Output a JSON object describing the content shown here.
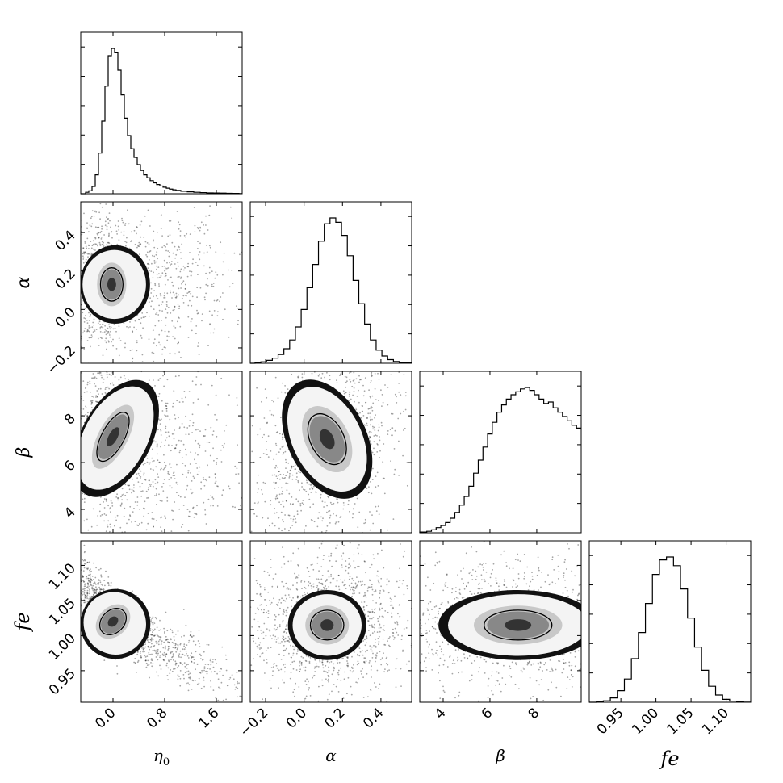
{
  "chart_data": {
    "type": "corner",
    "parameters": [
      {
        "key": "eta0",
        "label": "η",
        "sub": "0",
        "range": [
          -0.5,
          2.0
        ],
        "ticks": [
          0.0,
          0.8,
          1.6
        ],
        "tick_labels": [
          "0.0",
          "0.8",
          "1.6"
        ]
      },
      {
        "key": "alpha",
        "label": "α",
        "sub": "",
        "range": [
          -0.28,
          0.56
        ],
        "ticks": [
          -0.2,
          0.0,
          0.2,
          0.4
        ],
        "tick_labels": [
          "−0.2",
          "0.0",
          "0.2",
          "0.4"
        ]
      },
      {
        "key": "beta",
        "label": "β",
        "sub": "",
        "range": [
          3.0,
          9.9
        ],
        "ticks": [
          4,
          6,
          8
        ],
        "tick_labels": [
          "4",
          "6",
          "8"
        ]
      },
      {
        "key": "fe",
        "label": "fe",
        "sub": "",
        "range": [
          0.905,
          1.135
        ],
        "ticks": [
          0.95,
          1.0,
          1.05,
          1.1
        ],
        "tick_labels": [
          "0.95",
          "1.00",
          "1.05",
          "1.10"
        ]
      }
    ],
    "marginals": [
      {
        "param": "eta0",
        "bin_centers": [
          -0.45,
          -0.4,
          -0.35,
          -0.3,
          -0.25,
          -0.2,
          -0.15,
          -0.1,
          -0.05,
          0.0,
          0.05,
          0.1,
          0.15,
          0.2,
          0.25,
          0.3,
          0.35,
          0.4,
          0.45,
          0.5,
          0.55,
          0.6,
          0.65,
          0.7,
          0.75,
          0.8,
          0.85,
          0.9,
          0.95,
          1.0,
          1.1,
          1.2,
          1.3,
          1.4,
          1.5,
          1.6,
          1.7,
          1.8,
          1.9,
          2.0
        ],
        "values": [
          0.0,
          0.01,
          0.02,
          0.05,
          0.13,
          0.28,
          0.5,
          0.74,
          0.95,
          1.0,
          0.97,
          0.85,
          0.68,
          0.52,
          0.4,
          0.31,
          0.25,
          0.2,
          0.16,
          0.13,
          0.11,
          0.09,
          0.075,
          0.063,
          0.053,
          0.045,
          0.038,
          0.032,
          0.027,
          0.023,
          0.017,
          0.013,
          0.01,
          0.008,
          0.006,
          0.005,
          0.004,
          0.003,
          0.002,
          0.001
        ]
      },
      {
        "param": "alpha",
        "bin_centers": [
          -0.27,
          -0.24,
          -0.21,
          -0.18,
          -0.15,
          -0.12,
          -0.09,
          -0.06,
          -0.03,
          0.0,
          0.03,
          0.06,
          0.09,
          0.12,
          0.15,
          0.18,
          0.21,
          0.24,
          0.27,
          0.3,
          0.33,
          0.36,
          0.39,
          0.42,
          0.45,
          0.48,
          0.51,
          0.54
        ],
        "values": [
          0.0,
          0.005,
          0.01,
          0.02,
          0.035,
          0.06,
          0.1,
          0.16,
          0.25,
          0.37,
          0.52,
          0.68,
          0.84,
          0.96,
          1.0,
          0.97,
          0.88,
          0.74,
          0.57,
          0.41,
          0.27,
          0.16,
          0.09,
          0.05,
          0.025,
          0.012,
          0.005,
          0.002
        ]
      },
      {
        "param": "beta",
        "bin_centers": [
          3.2,
          3.4,
          3.6,
          3.8,
          4.0,
          4.2,
          4.4,
          4.6,
          4.8,
          5.0,
          5.2,
          5.4,
          5.6,
          5.8,
          6.0,
          6.2,
          6.4,
          6.6,
          6.8,
          7.0,
          7.2,
          7.4,
          7.6,
          7.8,
          8.0,
          8.2,
          8.4,
          8.6,
          8.8,
          9.0,
          9.2,
          9.4,
          9.6,
          9.8
        ],
        "values": [
          0.005,
          0.01,
          0.02,
          0.035,
          0.05,
          0.07,
          0.1,
          0.14,
          0.19,
          0.25,
          0.32,
          0.41,
          0.5,
          0.59,
          0.68,
          0.76,
          0.83,
          0.88,
          0.92,
          0.95,
          0.97,
          0.99,
          1.0,
          0.98,
          0.95,
          0.92,
          0.89,
          0.9,
          0.86,
          0.83,
          0.8,
          0.77,
          0.74,
          0.72
        ]
      },
      {
        "param": "fe",
        "bin_centers": [
          0.91,
          0.92,
          0.93,
          0.94,
          0.95,
          0.96,
          0.97,
          0.98,
          0.99,
          1.0,
          1.01,
          1.02,
          1.03,
          1.04,
          1.05,
          1.06,
          1.07,
          1.08,
          1.09,
          1.1,
          1.11,
          1.12,
          1.13
        ],
        "values": [
          0.0,
          0.005,
          0.01,
          0.03,
          0.08,
          0.16,
          0.3,
          0.48,
          0.68,
          0.88,
          0.98,
          1.0,
          0.94,
          0.78,
          0.58,
          0.38,
          0.22,
          0.11,
          0.05,
          0.02,
          0.008,
          0.003,
          0.001
        ]
      }
    ],
    "joint": [
      {
        "x": "eta0",
        "y": "alpha",
        "center": [
          -0.02,
          0.13
        ],
        "spread": [
          0.18,
          0.09
        ],
        "correlation": 0.0,
        "skew_x": 1.0
      },
      {
        "x": "eta0",
        "y": "beta",
        "center": [
          0.0,
          7.1
        ],
        "spread": [
          0.18,
          1.2
        ],
        "correlation": -0.25,
        "skew_x": 1.0
      },
      {
        "x": "alpha",
        "y": "beta",
        "center": [
          0.12,
          7.0
        ],
        "spread": [
          0.09,
          1.2
        ],
        "correlation": 0.35,
        "skew_x": 0.0
      },
      {
        "x": "eta0",
        "y": "fe",
        "center": [
          0.0,
          1.02
        ],
        "spread": [
          0.18,
          0.022
        ],
        "correlation": -0.9,
        "skew_x": 1.0
      },
      {
        "x": "alpha",
        "y": "fe",
        "center": [
          0.12,
          1.015
        ],
        "spread": [
          0.09,
          0.022
        ],
        "correlation": 0.0,
        "skew_x": 0.0
      },
      {
        "x": "beta",
        "y": "fe",
        "center": [
          7.2,
          1.015
        ],
        "spread": [
          1.5,
          0.022
        ],
        "correlation": 0.0,
        "skew_x": 0.0
      }
    ]
  }
}
